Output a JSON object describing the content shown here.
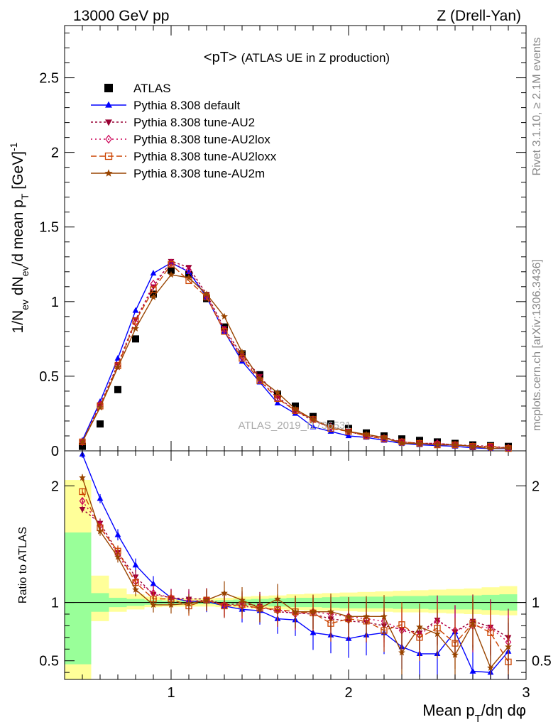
{
  "header": {
    "left": "13000 GeV pp",
    "right": "Z (Drell-Yan)"
  },
  "side_labels": {
    "rivet": "Rivet 3.1.10, ≥ 2.1M events",
    "mcplots": "mcplots.cern.ch [arXiv:1306.3436]"
  },
  "watermark": "ATLAS_2019_I1736531",
  "chart_data": [
    {
      "type": "scatter",
      "panel": "main",
      "title": "<pT>",
      "subtitle": "(ATLAS UE in Z production)",
      "ylabel": "1/N_ev dN_ev/d mean p_T [GeV]^-1",
      "xlim": [
        0.4,
        3.0
      ],
      "ylim": [
        0,
        2.85
      ],
      "x_ticks": [
        1,
        2,
        3
      ],
      "y_ticks": [
        0,
        0.5,
        1,
        1.5,
        2,
        2.5
      ],
      "y_tick_labels": [
        "0",
        "0.5",
        "1",
        "1.5",
        "2",
        "2.5"
      ],
      "legend_position": "top-left",
      "x": [
        0.5,
        0.6,
        0.7,
        0.8,
        0.9,
        1.0,
        1.1,
        1.2,
        1.3,
        1.4,
        1.5,
        1.6,
        1.7,
        1.8,
        1.9,
        2.0,
        2.1,
        2.2,
        2.3,
        2.4,
        2.5,
        2.6,
        2.7,
        2.8,
        2.9
      ],
      "series": [
        {
          "name": "ATLAS",
          "color": "#000000",
          "marker": "square",
          "values": [
            0.03,
            0.18,
            0.41,
            0.75,
            1.05,
            1.21,
            1.18,
            1.02,
            0.83,
            0.65,
            0.51,
            0.38,
            0.3,
            0.23,
            0.18,
            0.15,
            0.12,
            0.1,
            0.08,
            0.07,
            0.06,
            0.05,
            0.04,
            0.035,
            0.03
          ]
        },
        {
          "name": "Pythia 8.308 default",
          "color": "#0000ff",
          "marker": "triangle-up",
          "dash": "",
          "values": [
            0.07,
            0.33,
            0.62,
            0.94,
            1.19,
            1.26,
            1.2,
            1.03,
            0.8,
            0.6,
            0.46,
            0.32,
            0.25,
            0.16,
            0.13,
            0.1,
            0.09,
            0.07,
            0.05,
            0.04,
            0.035,
            0.03,
            0.02,
            0.015,
            0.015
          ]
        },
        {
          "name": "Pythia 8.308 tune-AU2",
          "color": "#990033",
          "marker": "triangle-down",
          "dash": "3,3",
          "values": [
            0.06,
            0.31,
            0.58,
            0.88,
            1.1,
            1.27,
            1.23,
            1.05,
            0.82,
            0.64,
            0.5,
            0.36,
            0.27,
            0.2,
            0.16,
            0.13,
            0.1,
            0.09,
            0.06,
            0.05,
            0.05,
            0.04,
            0.035,
            0.03,
            0.02
          ]
        },
        {
          "name": "Pythia 8.308 tune-AU2lox",
          "color": "#cc0055",
          "marker": "diamond",
          "dash": "2,4",
          "values": [
            0.06,
            0.31,
            0.57,
            0.86,
            1.12,
            1.26,
            1.21,
            1.04,
            0.81,
            0.63,
            0.48,
            0.35,
            0.27,
            0.21,
            0.16,
            0.13,
            0.1,
            0.08,
            0.06,
            0.05,
            0.05,
            0.04,
            0.03,
            0.025,
            0.02
          ]
        },
        {
          "name": "Pythia 8.308 tune-AU2loxx",
          "color": "#cc4400",
          "marker": "square-open",
          "dash": "8,4",
          "values": [
            0.06,
            0.3,
            0.57,
            0.87,
            1.08,
            1.25,
            1.14,
            1.03,
            0.8,
            0.62,
            0.47,
            0.35,
            0.27,
            0.21,
            0.15,
            0.13,
            0.1,
            0.08,
            0.06,
            0.05,
            0.04,
            0.04,
            0.03,
            0.03,
            0.015
          ]
        },
        {
          "name": "Pythia 8.308 tune-AU2m",
          "color": "#994400",
          "marker": "star",
          "dash": "",
          "values": [
            0.06,
            0.29,
            0.56,
            0.82,
            1.03,
            1.18,
            1.16,
            1.05,
            0.9,
            0.66,
            0.48,
            0.39,
            0.28,
            0.21,
            0.16,
            0.13,
            0.11,
            0.09,
            0.05,
            0.05,
            0.04,
            0.04,
            0.03,
            0.015,
            0.02
          ]
        }
      ]
    },
    {
      "type": "scatter",
      "panel": "ratio",
      "xlabel": "Mean p_T/dη dφ",
      "ylabel": "Ratio to ATLAS",
      "xlim": [
        0.4,
        3.0
      ],
      "ylim": [
        0.34,
        2.3
      ],
      "x_ticks": [
        1,
        2,
        3
      ],
      "x_tick_labels": [
        "1",
        "2",
        "3"
      ],
      "y_ticks": [
        0.5,
        1,
        2
      ],
      "y_tick_labels": [
        "0.5",
        "1",
        "2"
      ],
      "band_edges": [
        0.4,
        0.55,
        0.65,
        0.75,
        0.85,
        0.95,
        1.05,
        1.15,
        1.25,
        1.35,
        1.45,
        1.55,
        1.65,
        1.75,
        1.85,
        1.95,
        2.05,
        2.15,
        2.25,
        2.35,
        2.45,
        2.55,
        2.65,
        2.75,
        2.85,
        2.95
      ],
      "band_inner": [
        [
          0.47,
          1.6
        ],
        [
          0.92,
          1.08
        ],
        [
          0.96,
          1.04
        ],
        [
          0.97,
          1.03
        ],
        [
          0.98,
          1.02
        ],
        [
          0.985,
          1.015
        ],
        [
          0.985,
          1.015
        ],
        [
          0.985,
          1.015
        ],
        [
          0.98,
          1.02
        ],
        [
          0.975,
          1.025
        ],
        [
          0.97,
          1.03
        ],
        [
          0.965,
          1.035
        ],
        [
          0.96,
          1.04
        ],
        [
          0.96,
          1.04
        ],
        [
          0.955,
          1.045
        ],
        [
          0.95,
          1.05
        ],
        [
          0.95,
          1.05
        ],
        [
          0.95,
          1.05
        ],
        [
          0.945,
          1.055
        ],
        [
          0.945,
          1.055
        ],
        [
          0.94,
          1.06
        ],
        [
          0.94,
          1.06
        ],
        [
          0.94,
          1.06
        ],
        [
          0.935,
          1.065
        ],
        [
          0.93,
          1.07
        ]
      ],
      "band_outer": [
        [
          0.34,
          2.05
        ],
        [
          0.84,
          1.23
        ],
        [
          0.92,
          1.12
        ],
        [
          0.94,
          1.07
        ],
        [
          0.96,
          1.05
        ],
        [
          0.965,
          1.04
        ],
        [
          0.965,
          1.035
        ],
        [
          0.965,
          1.035
        ],
        [
          0.96,
          1.04
        ],
        [
          0.955,
          1.05
        ],
        [
          0.945,
          1.055
        ],
        [
          0.94,
          1.06
        ],
        [
          0.935,
          1.07
        ],
        [
          0.93,
          1.075
        ],
        [
          0.93,
          1.08
        ],
        [
          0.925,
          1.085
        ],
        [
          0.92,
          1.09
        ],
        [
          0.92,
          1.095
        ],
        [
          0.915,
          1.1
        ],
        [
          0.915,
          1.105
        ],
        [
          0.91,
          1.11
        ],
        [
          0.905,
          1.115
        ],
        [
          0.9,
          1.12
        ],
        [
          0.895,
          1.13
        ],
        [
          0.89,
          1.14
        ]
      ],
      "x": [
        0.5,
        0.6,
        0.7,
        0.8,
        0.9,
        1.0,
        1.1,
        1.2,
        1.3,
        1.4,
        1.5,
        1.6,
        1.7,
        1.8,
        1.9,
        2.0,
        2.1,
        2.2,
        2.3,
        2.4,
        2.5,
        2.6,
        2.7,
        2.8,
        2.9
      ],
      "series": [
        {
          "name": "Pythia 8.308 default",
          "color": "#0000ff",
          "marker": "triangle-up",
          "dash": "",
          "values": [
            2.27,
            1.89,
            1.58,
            1.32,
            1.16,
            1.04,
            1.01,
            1.01,
            0.97,
            0.94,
            0.93,
            0.86,
            0.85,
            0.74,
            0.72,
            0.69,
            0.72,
            0.74,
            0.62,
            0.56,
            0.56,
            0.75,
            0.41,
            0.4,
            0.58
          ]
        },
        {
          "name": "Pythia 8.308 tune-AU2",
          "color": "#990033",
          "marker": "triangle-down",
          "dash": "3,3",
          "values": [
            1.8,
            1.68,
            1.43,
            1.22,
            1.07,
            1.04,
            1.03,
            1.03,
            0.98,
            0.99,
            0.97,
            0.92,
            0.91,
            0.9,
            0.86,
            0.84,
            0.83,
            0.8,
            0.77,
            0.74,
            0.85,
            0.75,
            0.84,
            0.79,
            0.7
          ]
        },
        {
          "name": "Pythia 8.308 tune-AU2lox",
          "color": "#cc0055",
          "marker": "diamond",
          "dash": "2,4",
          "values": [
            1.87,
            1.66,
            1.41,
            1.18,
            1.08,
            1.04,
            1.01,
            1.02,
            0.98,
            0.97,
            0.95,
            0.94,
            0.9,
            0.92,
            0.9,
            0.88,
            0.86,
            0.84,
            0.76,
            0.72,
            0.84,
            0.76,
            0.8,
            0.78,
            0.66
          ]
        },
        {
          "name": "Pythia 8.308 tune-AU2loxx",
          "color": "#cc4400",
          "marker": "square-open",
          "dash": "8,4",
          "values": [
            1.95,
            1.64,
            1.44,
            1.17,
            1.03,
            1.03,
            0.97,
            1.02,
            0.97,
            0.98,
            0.95,
            0.94,
            0.92,
            0.91,
            0.82,
            0.86,
            0.84,
            0.76,
            0.81,
            0.7,
            0.78,
            0.65,
            0.82,
            0.74,
            0.49
          ]
        },
        {
          "name": "Pythia 8.308 tune-AU2m",
          "color": "#994400",
          "marker": "star",
          "dash": "",
          "values": [
            2.07,
            1.61,
            1.39,
            1.11,
            0.98,
            0.98,
            0.99,
            1.02,
            1.08,
            1.02,
            0.95,
            1.03,
            0.92,
            0.92,
            0.92,
            0.88,
            0.88,
            0.88,
            0.57,
            0.79,
            0.73,
            0.55,
            0.82,
            0.44,
            0.62
          ]
        }
      ]
    }
  ]
}
